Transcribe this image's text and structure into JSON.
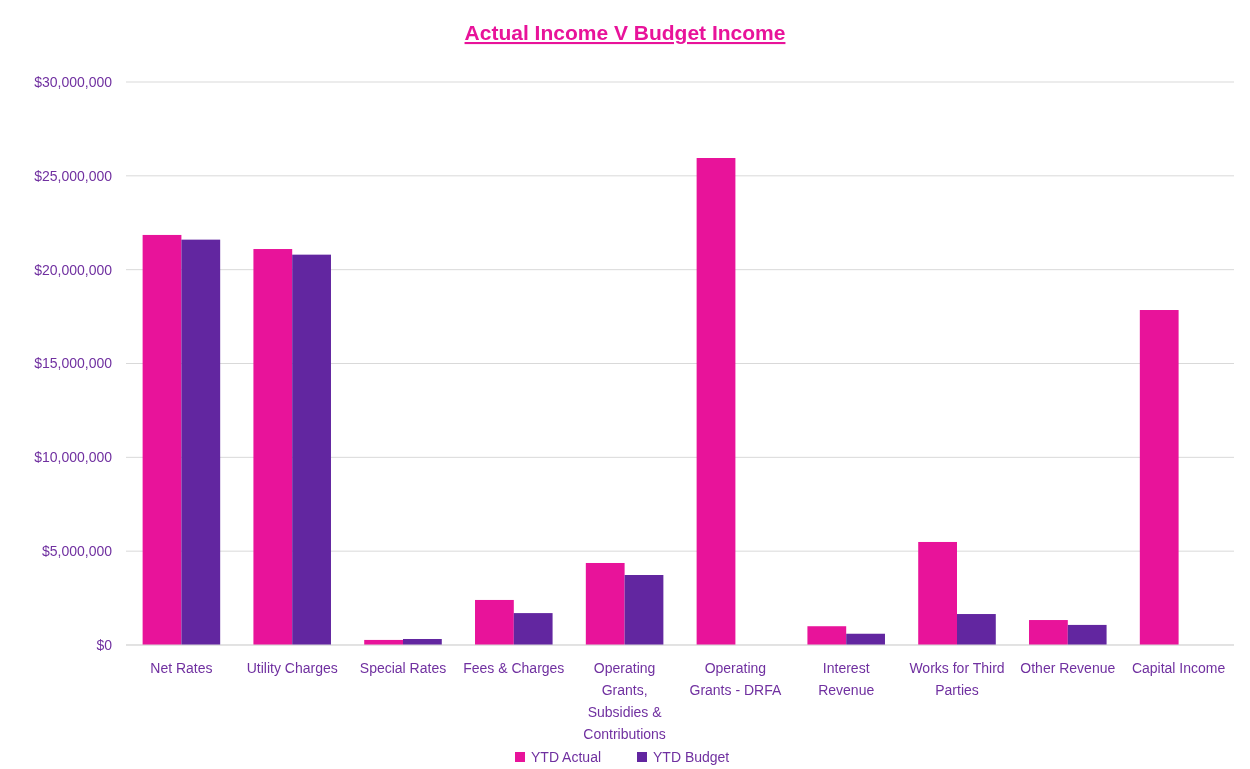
{
  "chart_data": {
    "type": "bar",
    "title": "Actual Income V Budget Income",
    "categories": [
      "Net Rates",
      "Utility Charges",
      "Special Rates",
      "Fees & Charges",
      "Operating Grants, Subsidies & Contributions",
      "Operating Grants - DRFA",
      "Interest Revenue",
      "Works for Third Parties",
      "Other Revenue",
      "Capital Income"
    ],
    "series": [
      {
        "name": "YTD Actual",
        "color": "#e8139a",
        "values": [
          21850000,
          21100000,
          270000,
          2400000,
          4370000,
          25950000,
          1000000,
          5490000,
          1330000,
          17850000
        ]
      },
      {
        "name": "YTD Budget",
        "color": "#6226a0",
        "values": [
          21600000,
          20800000,
          320000,
          1700000,
          3730000,
          0,
          600000,
          1650000,
          1070000,
          0
        ]
      }
    ],
    "ylim": [
      0,
      30000000
    ],
    "yticks": [
      {
        "value": 0,
        "label": "$0"
      },
      {
        "value": 5000000,
        "label": "$5,000,000"
      },
      {
        "value": 10000000,
        "label": "$10,000,000"
      },
      {
        "value": 15000000,
        "label": "$15,000,000"
      },
      {
        "value": 20000000,
        "label": "$20,000,000"
      },
      {
        "value": 25000000,
        "label": "$25,000,000"
      },
      {
        "value": 30000000,
        "label": "$30,000,000"
      }
    ],
    "grid": "y",
    "legend": "bottom"
  }
}
